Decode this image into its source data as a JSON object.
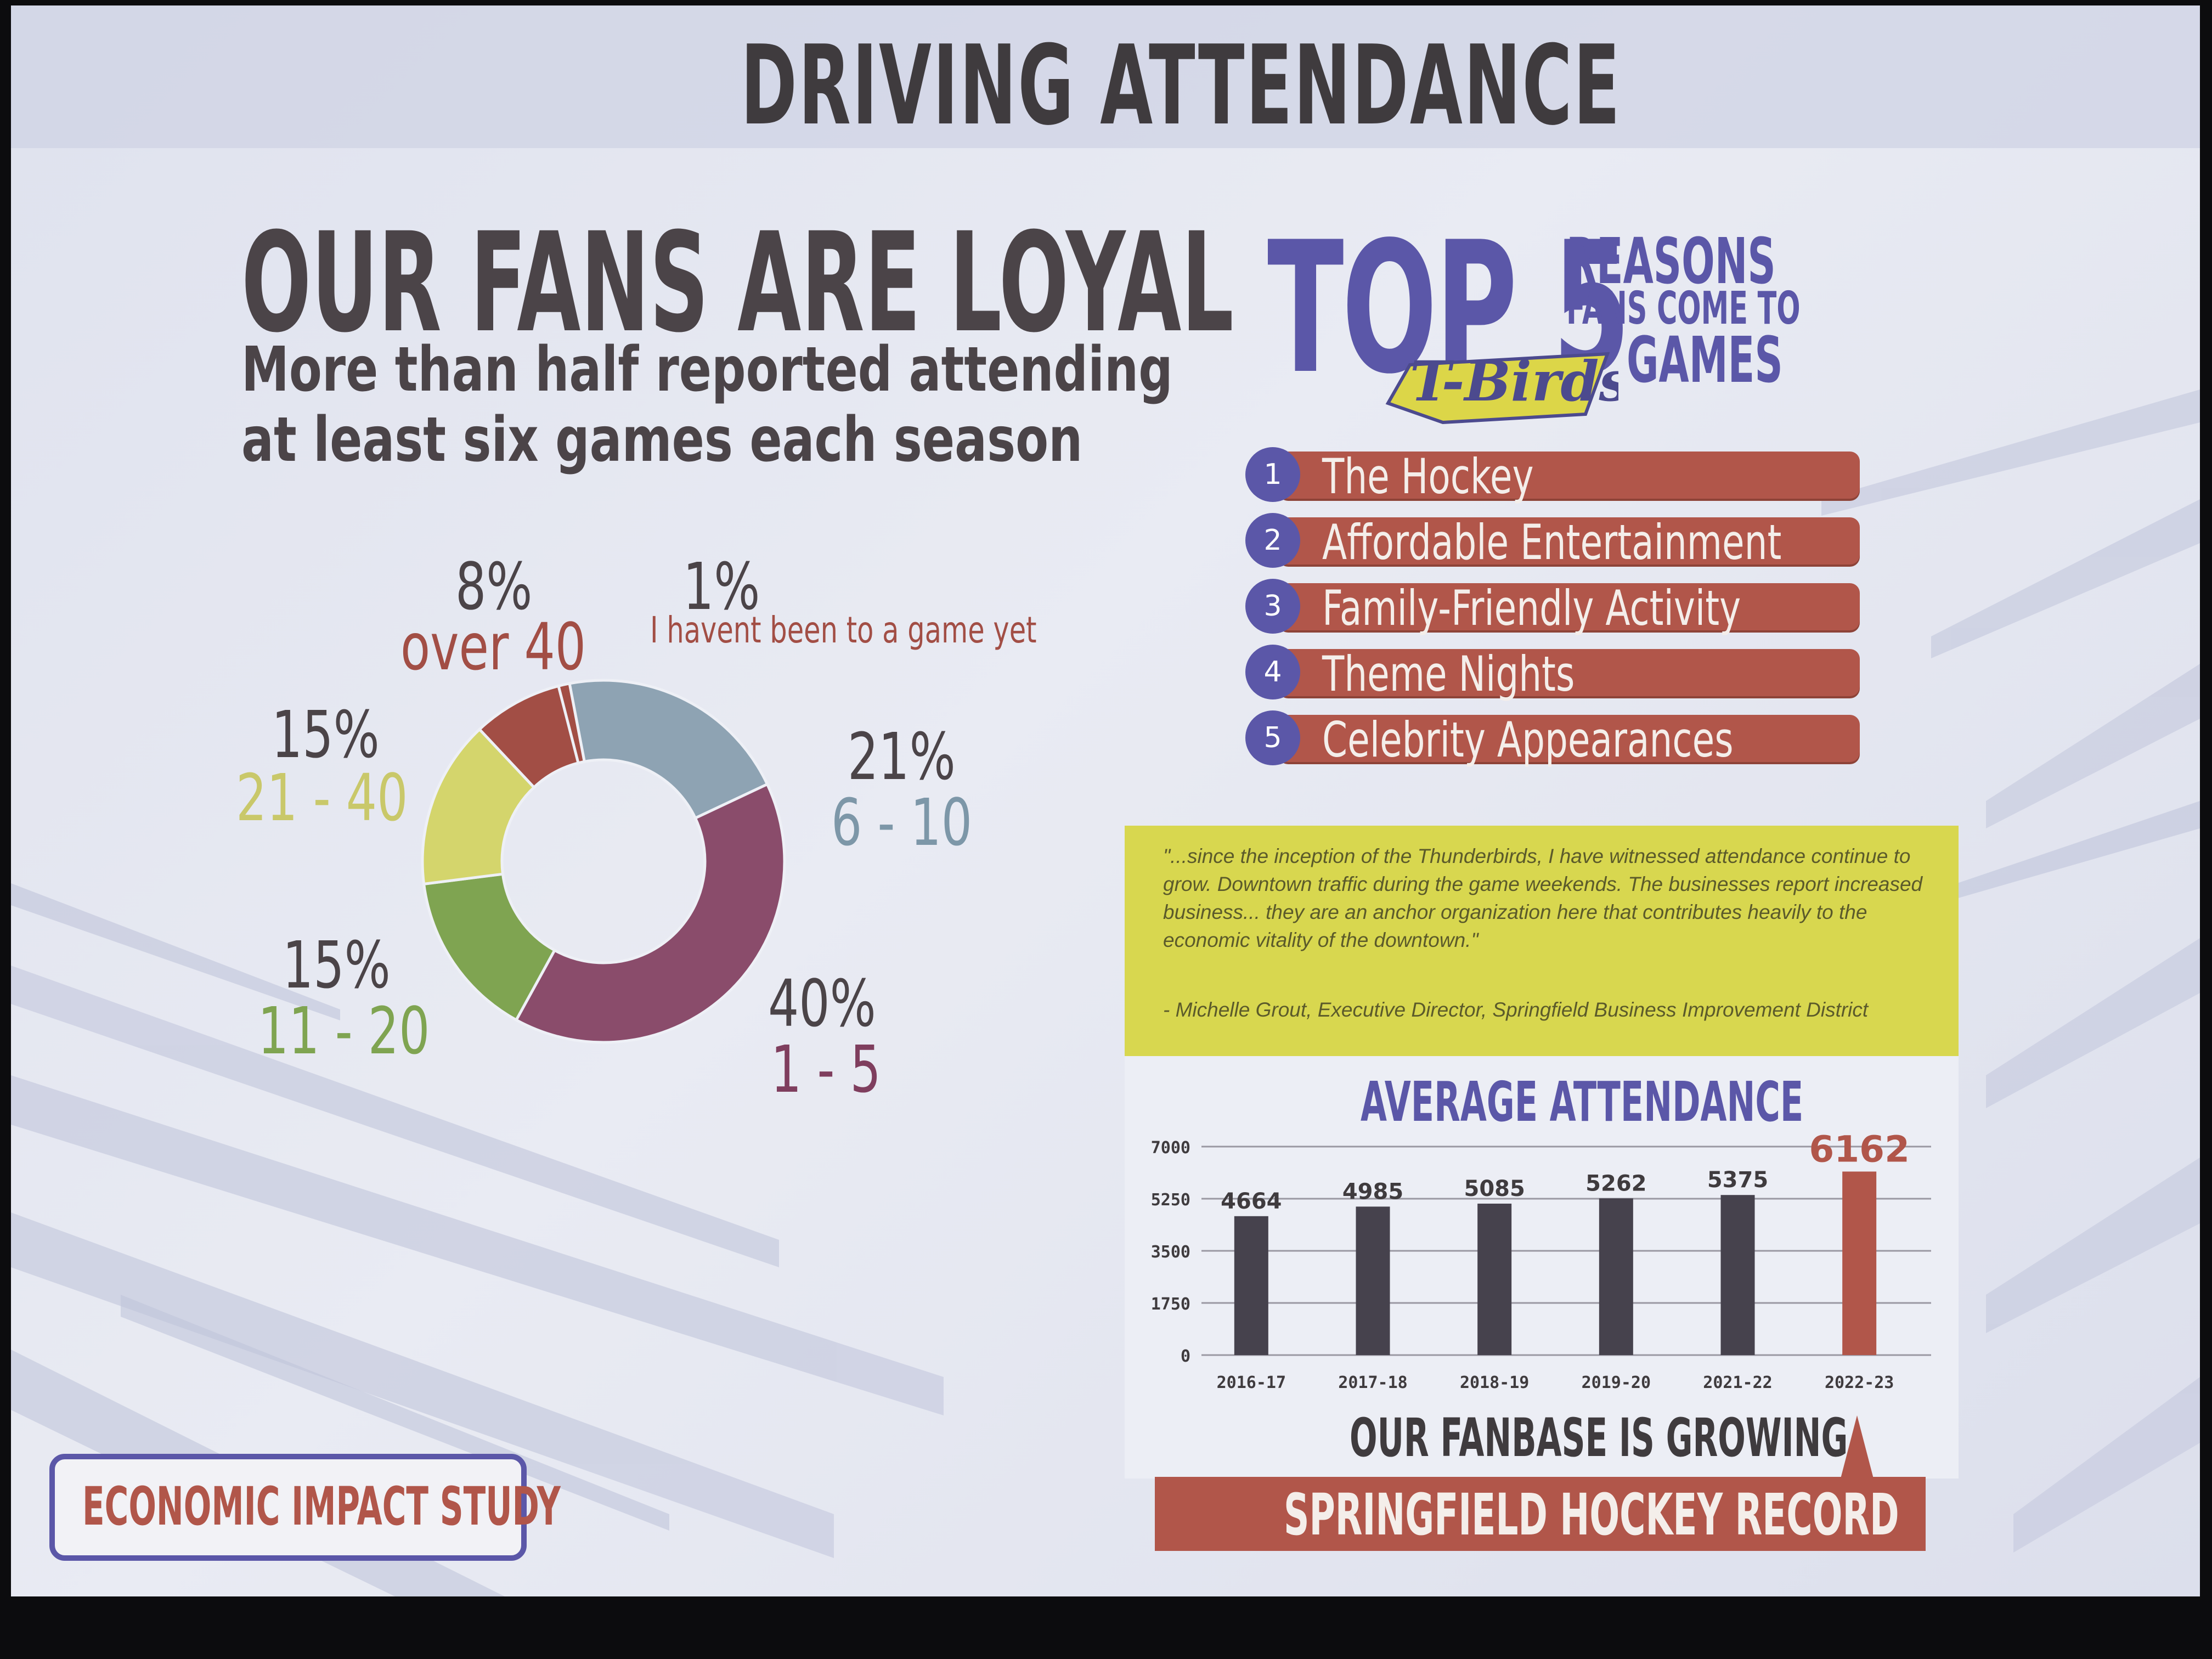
{
  "slide_title": "DRIVING ATTENDANCE",
  "loyal": {
    "heading": "OUR FANS ARE LOYAL",
    "subheading_line1": "More than half reported attending",
    "subheading_line2": "at least six games each season"
  },
  "top5": {
    "big": "TOP 5",
    "line1": "REASONS",
    "line2": "FANS COME TO",
    "line3": "GAMES",
    "logo_text": "T-Birds",
    "reasons": [
      {
        "num": "1",
        "label": "The Hockey"
      },
      {
        "num": "2",
        "label": "Affordable Entertainment"
      },
      {
        "num": "3",
        "label": "Family-Friendly Activity"
      },
      {
        "num": "4",
        "label": "Theme Nights"
      },
      {
        "num": "5",
        "label": "Celebrity Appearances"
      }
    ]
  },
  "quote": {
    "text": "\"...since the inception of the Thunderbirds, I have witnessed attendance continue to grow. Downtown traffic during the game weekends. The businesses report increased business... they are an anchor organization here that contributes heavily to the economic vitality of the downtown.\"",
    "attribution": "- Michelle Grout, Executive Director, Springfield Business Improvement District"
  },
  "growing_label": "OUR FANBASE IS GROWING",
  "record_label": "SPRINGFIELD HOCKEY RECORD",
  "footer_label": "ECONOMIC IMPACT STUDY",
  "colors": {
    "purple": "#5b57a8",
    "rust": "#b1564a",
    "yellow": "#d8d74f",
    "dark_bar": "#46424d",
    "donut_blue": "#8ea3b3",
    "donut_purple": "#8a4c6b",
    "donut_green": "#7fa451",
    "donut_yellow": "#d4d56c",
    "donut_rust": "#a24e45"
  },
  "chart_data": [
    {
      "type": "pie",
      "donut": true,
      "slices": [
        {
          "pct_label": "21%",
          "range_label": "6 - 10",
          "value": 21,
          "color": "#8ea3b3"
        },
        {
          "pct_label": "40%",
          "range_label": "1 - 5",
          "value": 40,
          "color": "#8a4c6b"
        },
        {
          "pct_label": "15%",
          "range_label": "11 - 20",
          "value": 15,
          "color": "#7fa451"
        },
        {
          "pct_label": "15%",
          "range_label": "21 - 40",
          "value": 15,
          "color": "#d4d56c"
        },
        {
          "pct_label": "8%",
          "range_label": "over 40",
          "value": 8,
          "color": "#a24e45"
        },
        {
          "pct_label": "1%",
          "range_label": "I havent been to a game yet",
          "value": 1,
          "color": "#a24e45"
        }
      ]
    },
    {
      "type": "bar",
      "title": "AVERAGE ATTENDANCE",
      "categories": [
        "2016-17",
        "2017-18",
        "2018-19",
        "2019-20",
        "2021-22",
        "2022-23"
      ],
      "values": [
        4664,
        4985,
        5085,
        5262,
        5375,
        6162
      ],
      "value_labels": [
        "4664",
        "4985",
        "5085",
        "5262",
        "5375",
        "6162"
      ],
      "yticks": [
        "0",
        "1750",
        "3500",
        "5250",
        "7000"
      ],
      "ylim": [
        0,
        7000
      ],
      "highlight_last": true,
      "grid": true
    }
  ]
}
